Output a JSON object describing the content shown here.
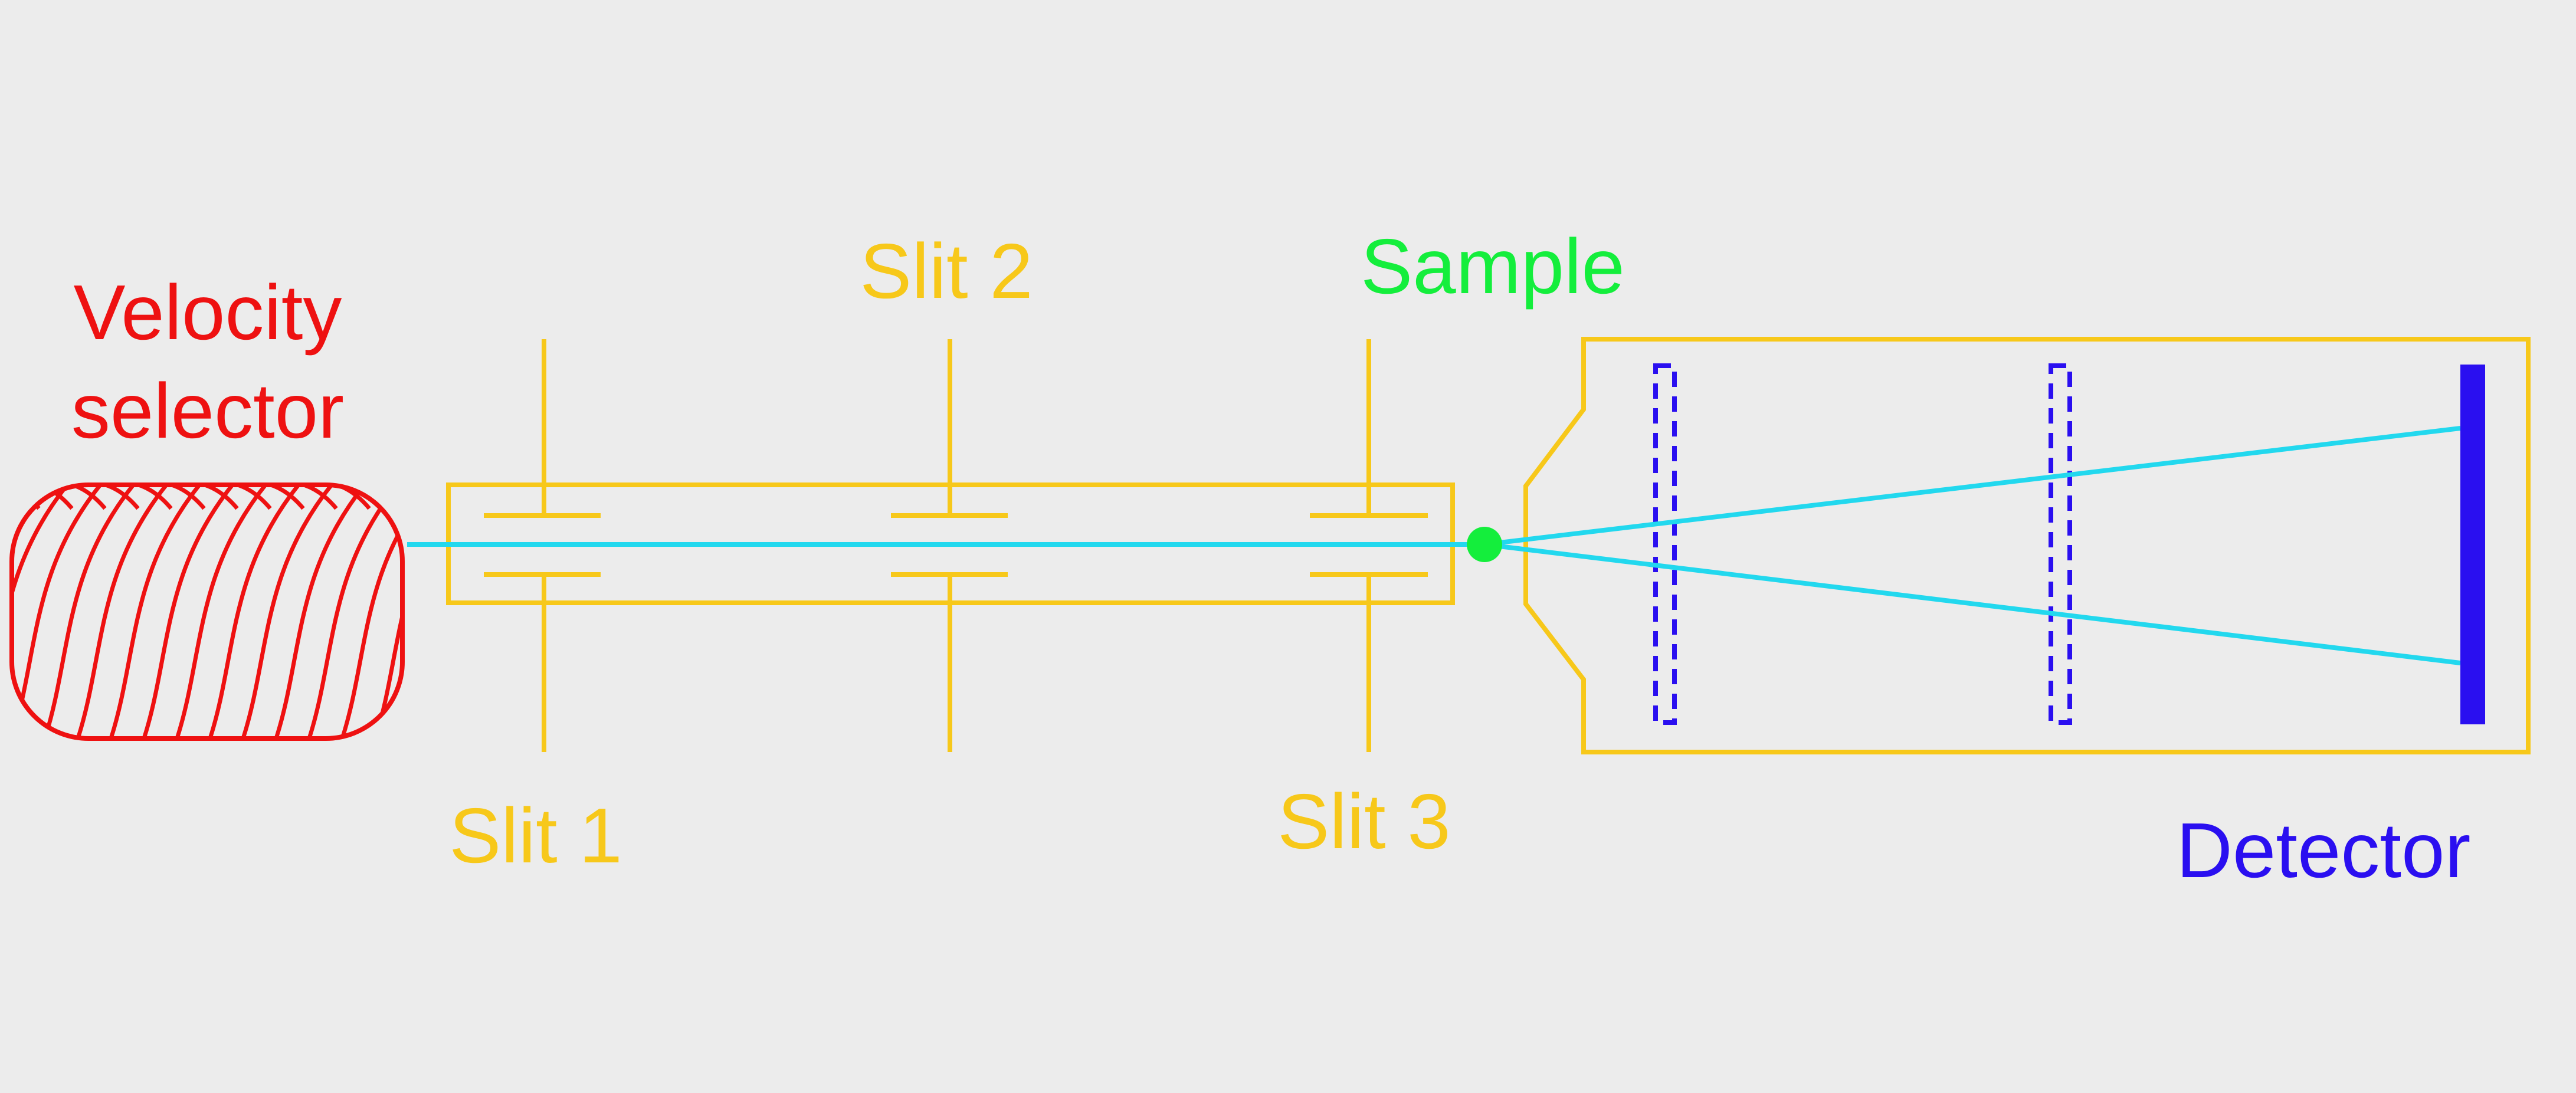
{
  "labels": {
    "velocity_selector_line1": "Velocity",
    "velocity_selector_line2": "selector",
    "slit1": "Slit 1",
    "slit2": "Slit 2",
    "slit3": "Slit 3",
    "sample": "Sample",
    "detector": "Detector"
  },
  "colors": {
    "background": "#ececec",
    "velocity_selector": "#ee1111",
    "collimation": "#f7c81a",
    "beam": "#22d8ee",
    "sample": "#14ee3c",
    "detector": "#2a0ff0"
  }
}
